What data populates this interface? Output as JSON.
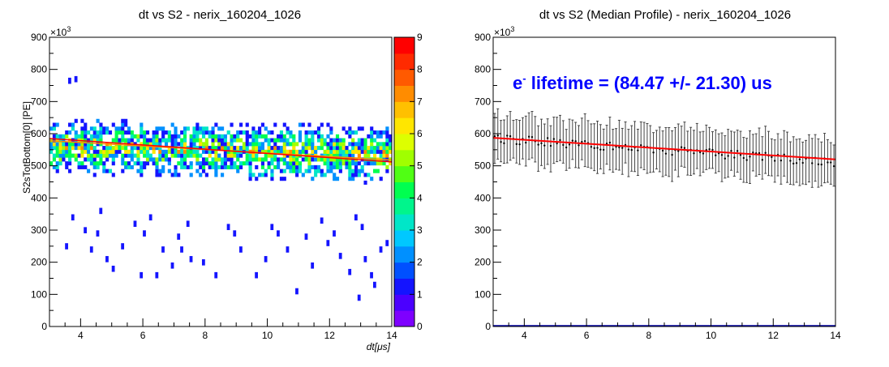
{
  "chart_data": [
    {
      "type": "heatmap",
      "title": "dt vs S2 - nerix_160204_1026",
      "xlabel": "dt[μs]",
      "ylabel": "S2sTotBottom[0] [PE]",
      "y_multiplier": "×10^3",
      "xlim": [
        3,
        14
      ],
      "ylim": [
        0,
        900
      ],
      "x_ticks": [
        "4",
        "6",
        "8",
        "10",
        "12",
        "14"
      ],
      "y_ticks": [
        "0",
        "100",
        "200",
        "300",
        "400",
        "500",
        "600",
        "700",
        "800",
        "900"
      ],
      "colorbar": {
        "zlim": [
          0,
          9
        ],
        "ticks": [
          "0",
          "1",
          "2",
          "3",
          "4",
          "5",
          "6",
          "7",
          "8",
          "9"
        ],
        "colors": [
          "#7e00ff",
          "#4b00ff",
          "#1414ff",
          "#0050ff",
          "#0090ff",
          "#00c8ff",
          "#00e6c8",
          "#00f58c",
          "#00ff50",
          "#50ff14",
          "#a0ff00",
          "#ddff00",
          "#ffe600",
          "#ffc000",
          "#ff8c00",
          "#ff5a00",
          "#ff2a00",
          "#ff0000"
        ]
      },
      "band": {
        "y_center_at_x3": 560,
        "y_center_at_x14": 535,
        "y_spread": 95,
        "y_min_dense": 430,
        "y_max_dense": 700
      },
      "scattered_low_counts": [
        [
          3.8,
          760
        ],
        [
          3.6,
          755
        ],
        [
          3.7,
          330
        ],
        [
          4.6,
          350
        ],
        [
          4.5,
          280
        ],
        [
          5.3,
          240
        ],
        [
          4.3,
          230
        ],
        [
          3.5,
          240
        ],
        [
          4.8,
          200
        ],
        [
          5.0,
          170
        ],
        [
          5.9,
          150
        ],
        [
          6.4,
          150
        ],
        [
          5.7,
          310
        ],
        [
          6.2,
          330
        ],
        [
          6.0,
          280
        ],
        [
          7.1,
          270
        ],
        [
          7.4,
          310
        ],
        [
          6.6,
          230
        ],
        [
          7.5,
          200
        ],
        [
          6.9,
          180
        ],
        [
          7.9,
          190
        ],
        [
          8.3,
          150
        ],
        [
          8.7,
          300
        ],
        [
          9.1,
          230
        ],
        [
          9.6,
          150
        ],
        [
          9.9,
          200
        ],
        [
          10.3,
          280
        ],
        [
          10.6,
          230
        ],
        [
          10.9,
          100
        ],
        [
          11.2,
          270
        ],
        [
          11.4,
          180
        ],
        [
          11.7,
          320
        ],
        [
          12.1,
          280
        ],
        [
          12.3,
          210
        ],
        [
          12.6,
          160
        ],
        [
          12.8,
          330
        ],
        [
          13.1,
          200
        ],
        [
          13.3,
          150
        ],
        [
          13.6,
          230
        ],
        [
          13.8,
          250
        ],
        [
          12.9,
          80
        ],
        [
          13.4,
          120
        ],
        [
          11.9,
          250
        ],
        [
          10.1,
          300
        ],
        [
          8.9,
          280
        ],
        [
          4.1,
          290
        ],
        [
          7.2,
          230
        ],
        [
          13.0,
          300
        ]
      ],
      "fit_line": {
        "color": "#ff0000",
        "x": [
          3,
          14
        ],
        "y": [
          585,
          512
        ]
      },
      "fit_line_under": {
        "color": "#ff8c00",
        "x": [
          3,
          14
        ],
        "y": [
          578,
          518
        ]
      }
    },
    {
      "type": "scatter",
      "title": "dt vs S2 (Median Profile) - nerix_160204_1026",
      "xlabel": "",
      "ylabel": "",
      "y_multiplier": "×10^3",
      "xlim": [
        3,
        14
      ],
      "ylim": [
        0,
        900
      ],
      "x_ticks": [
        "4",
        "6",
        "8",
        "10",
        "12",
        "14"
      ],
      "y_ticks": [
        "0",
        "100",
        "200",
        "300",
        "400",
        "500",
        "600",
        "700",
        "800",
        "900"
      ],
      "profile": {
        "points": 110,
        "y_start": 585,
        "y_end": 512,
        "jitter": 14,
        "err_min": 55,
        "err_max": 85
      },
      "fit_line": {
        "color": "#ff0000",
        "x": [
          3,
          14
        ],
        "y": [
          587,
          520
        ]
      },
      "annotation": {
        "prefix": "e",
        "superscript": "-",
        "text": " lifetime = (84.47 +/- 21.30) us",
        "color": "#0000ff"
      }
    }
  ]
}
